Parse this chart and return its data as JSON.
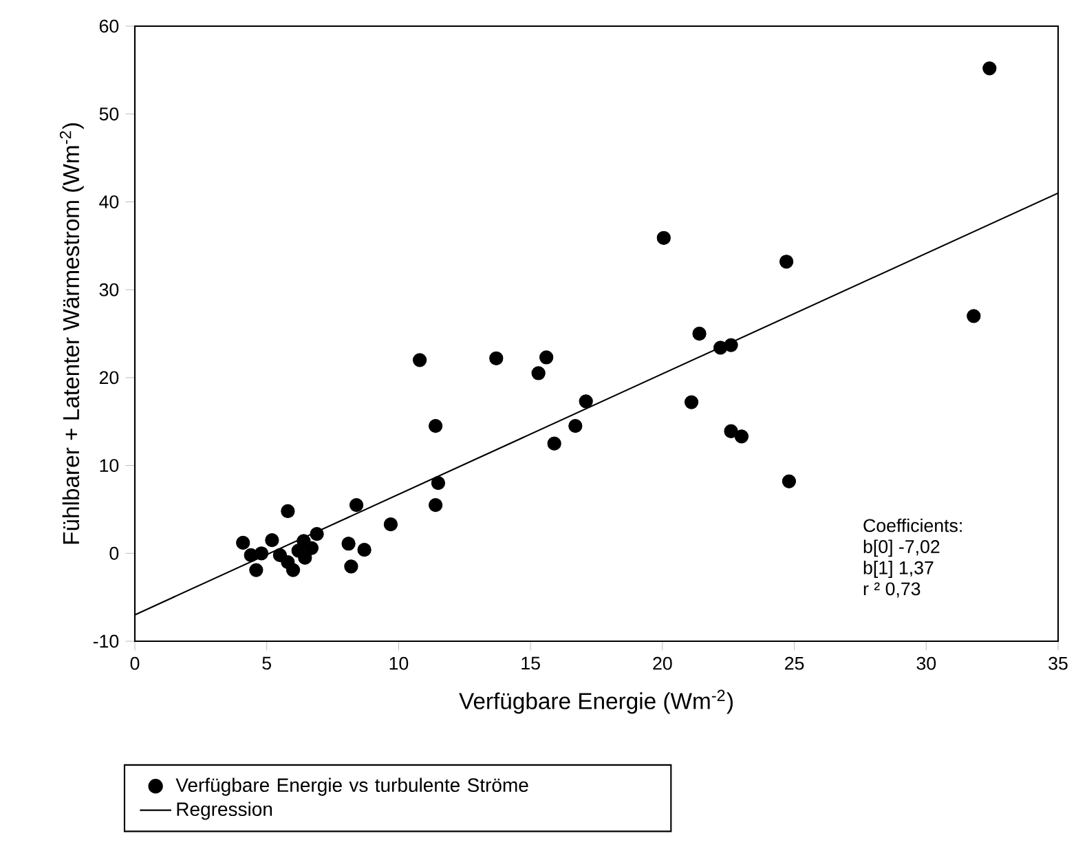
{
  "chart_data": {
    "type": "scatter",
    "xlabel": "Verfügbare Energie (Wm$^{-2}$)",
    "ylabel": "Fühlbarer + Latenter Wärmestrom (Wm$^{-2}$)",
    "xlim": [
      0,
      35
    ],
    "ylim": [
      -10,
      60
    ],
    "xticks": [
      0,
      5,
      10,
      15,
      20,
      25,
      30,
      35
    ],
    "yticks": [
      -10,
      0,
      10,
      20,
      30,
      40,
      50,
      60
    ],
    "grid": false,
    "legend": "bottom",
    "series": [
      {
        "name": "Verfügbare Energie vs turbulente Ströme",
        "color": "#000000",
        "marker": "circle",
        "x": [
          32.4,
          24.7,
          31.8,
          24.8,
          20.05,
          10.8,
          13.7,
          15.6,
          15.3,
          21.4,
          22.2,
          22.6,
          17.1,
          16.7,
          15.9,
          21.1,
          22.6,
          23.0,
          11.4,
          11.5,
          11.4,
          9.7,
          5.8,
          8.4,
          6.9,
          4.1,
          5.2,
          8.1,
          8.7,
          8.2,
          4.6,
          6.0,
          4.4,
          5.5,
          6.4,
          5.8,
          6.45,
          4.8,
          6.2,
          6.7
        ],
        "values": [
          55.2,
          33.2,
          27.0,
          8.2,
          35.9,
          22.0,
          22.2,
          22.3,
          20.5,
          25.0,
          23.4,
          23.7,
          17.3,
          14.5,
          12.5,
          17.2,
          13.9,
          13.3,
          14.5,
          8.0,
          5.5,
          3.3,
          4.8,
          5.5,
          2.2,
          1.2,
          1.5,
          1.1,
          0.4,
          -1.5,
          -1.9,
          -1.9,
          -0.2,
          -0.2,
          1.4,
          -1.0,
          -0.5,
          0.0,
          0.3,
          0.6
        ]
      },
      {
        "name": "Regression",
        "color": "#000000",
        "type": "line",
        "marker": "none",
        "line_style": "solid",
        "x": [
          0,
          35
        ],
        "values": [
          -7.0,
          41
        ]
      }
    ],
    "annotations": [
      "Coefficients:",
      "b[0] -7,02",
      "b[1] 1,37",
      "r ² 0,73"
    ]
  }
}
